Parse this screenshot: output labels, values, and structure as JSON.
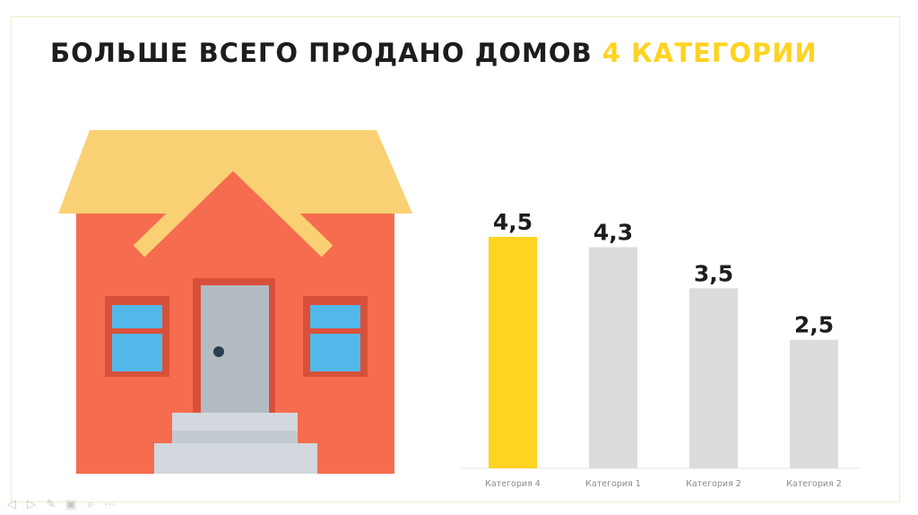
{
  "title": {
    "main": "БОЛЬШЕ ВСЕГО ПРОДАНО ДОМОВ ",
    "highlight": "4 КАТЕГОРИИ"
  },
  "colors": {
    "highlight_bar": "#ffd322",
    "other_bar": "#dcdcdc",
    "house_wall": "#f56c4e",
    "house_roof": "#f9d174",
    "window": "#52b8ea",
    "door": "#b4bcc3"
  },
  "icons": [
    "house-illustration"
  ],
  "chart_data": {
    "type": "bar",
    "categories": [
      "Категория 4",
      "Категория 1",
      "Категория 2",
      "Категория 2"
    ],
    "values": [
      4.5,
      4.3,
      3.5,
      2.5
    ],
    "value_labels": [
      "4,5",
      "4,3",
      "3,5",
      "2,5"
    ],
    "highlight_index": 0,
    "title": "",
    "xlabel": "",
    "ylabel": "",
    "ylim": [
      0,
      4.5
    ],
    "grid": false,
    "legend": "none"
  }
}
